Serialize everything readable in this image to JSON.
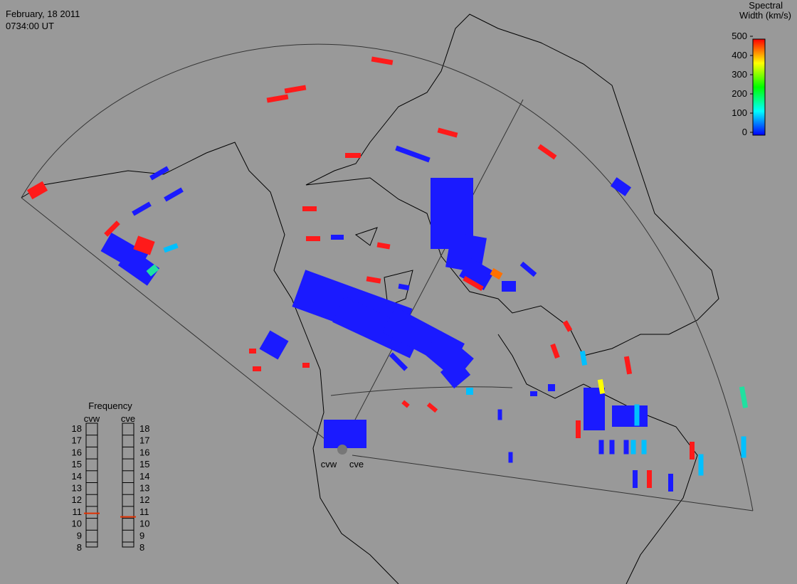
{
  "header": {
    "date": "February, 18 2011",
    "time": "0734:00 UT"
  },
  "colorbar": {
    "title_lines": [
      "Spectral",
      "Width (km/s)"
    ],
    "range": [
      0,
      500
    ],
    "ticks": [
      0,
      100,
      200,
      300,
      400,
      500
    ]
  },
  "frequency": {
    "title": "Frequency",
    "range": [
      8,
      18
    ],
    "ticks": [
      8,
      9,
      10,
      11,
      12,
      13,
      14,
      15,
      16,
      17,
      18
    ],
    "radars": [
      {
        "name": "cvw",
        "value": 10.9
      },
      {
        "name": "cve",
        "value": 10.6
      }
    ]
  },
  "map": {
    "radar_labels": [
      "cvw",
      "cve"
    ]
  }
}
